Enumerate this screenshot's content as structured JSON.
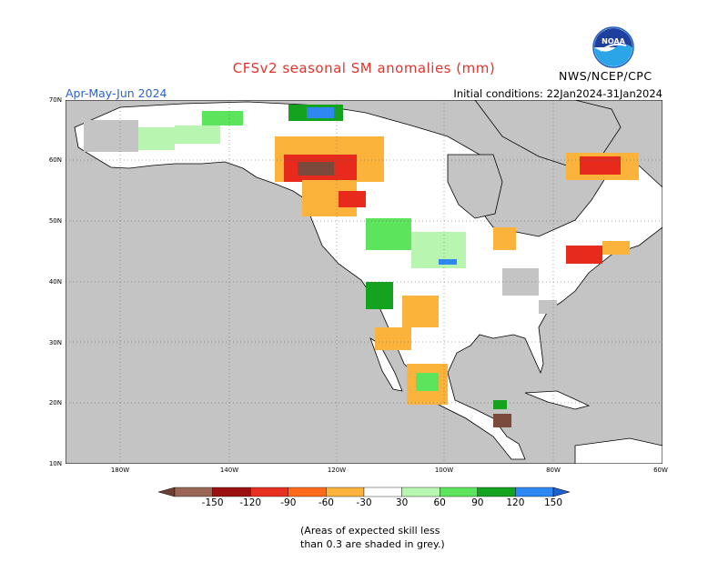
{
  "header": {
    "title": "CFSv2 seasonal SM anomalies (mm)",
    "period": "Apr-May-Jun 2024",
    "initial_conditions": "Initial conditions: 22Jan2024-31Jan2024",
    "agency": "NWS/NCEP/CPC",
    "logo_text": "NOAA"
  },
  "map": {
    "region": "North America",
    "lat_range": [
      10,
      70
    ],
    "lon_range": [
      -190,
      -60
    ],
    "lat_labels": [
      "70N",
      "60N",
      "50N",
      "40N",
      "30N",
      "20N",
      "10N"
    ],
    "lon_labels": [
      "180W",
      "140W",
      "120W",
      "100W",
      "80W",
      "60W"
    ],
    "colors": {
      "ocean": "#c4c4c4",
      "land": "#ffffff",
      "low_skill_grey": "#c4c4c4",
      "dry_150": "#7b4a3c",
      "dry_120": "#a30f0f",
      "dry_90": "#e82a1c",
      "dry_60": "#ff6a1a",
      "dry_30": "#fbb33c",
      "wet_30": "#b8f5b0",
      "wet_60": "#5ce45c",
      "wet_90": "#14a31e",
      "wet_120": "#0b7a16",
      "wet_150": "#2f88f2"
    },
    "features": [
      "Dry anomalies over western Canada and Labrador",
      "Wet anomalies over central US Plains and Mexico",
      "Grey low-skill areas over Alaska and eastern US"
    ]
  },
  "legend": {
    "ticks": [
      "-150",
      "-120",
      "-90",
      "-60",
      "-30",
      "30",
      "60",
      "90",
      "120",
      "150"
    ],
    "bins": [
      {
        "color": "#6e4034"
      },
      {
        "color": "#9a6656"
      },
      {
        "color": "#9b1010"
      },
      {
        "color": "#e83020"
      },
      {
        "color": "#ff6a1a"
      },
      {
        "color": "#fbb33c"
      },
      {
        "color": "#ffffff"
      },
      {
        "color": "#b8f5b0"
      },
      {
        "color": "#5ce45c"
      },
      {
        "color": "#14a31e"
      },
      {
        "color": "#2f88f2"
      },
      {
        "color": "#1f5fd0"
      }
    ]
  },
  "note": {
    "line1": "(Areas of expected skill less",
    "line2": "than 0.3 are shaded in grey.)"
  }
}
